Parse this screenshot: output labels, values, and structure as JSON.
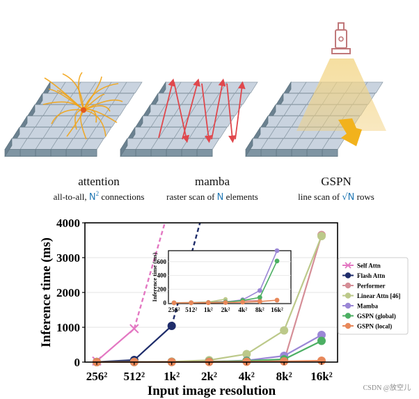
{
  "illustrations": [
    {
      "title": "attention",
      "subtitle_pre": "all-to-all, ",
      "subtitle_var": "N",
      "subtitle_sup": "2",
      "subtitle_post": " connections"
    },
    {
      "title": "mamba",
      "subtitle_pre": "raster scan of ",
      "subtitle_var": "N",
      "subtitle_sup": "",
      "subtitle_post": " elements"
    },
    {
      "title": "GSPN",
      "subtitle_pre": "line scan of ",
      "subtitle_var": "√N",
      "subtitle_sup": "",
      "subtitle_post": " rows"
    }
  ],
  "watermark": "CSDN @放空儿",
  "colors": {
    "self_attn": "#e377c2",
    "flash_attn": "#1f2d6b",
    "performer": "#d58e97",
    "linear_attn": "#bcc98a",
    "mamba": "#9b87d6",
    "gspn_global": "#4caf63",
    "gspn_local": "#e8885a",
    "tile_top": "#c9d3df",
    "tile_side": "#7f95a3",
    "math_blue": "#1f77b4"
  },
  "chart_data": {
    "type": "line",
    "title": "",
    "xlabel": "Input image resolution",
    "ylabel": "Inference time (ms)",
    "categories": [
      "256²",
      "512²",
      "1k²",
      "2k²",
      "4k²",
      "8k²",
      "16k²"
    ],
    "ylim": [
      0,
      4000
    ],
    "yticks": [
      0,
      1000,
      2000,
      3000,
      4000
    ],
    "grid": true,
    "legend_position": "right",
    "series": [
      {
        "name": "Self Attn",
        "key": "self_attn",
        "values": [
          30,
          960,
          null,
          null,
          null,
          null,
          null
        ],
        "extrapolated": true,
        "marker": "x"
      },
      {
        "name": "Flash Attn",
        "key": "flash_attn",
        "values": [
          5,
          60,
          1040,
          null,
          null,
          null,
          null
        ],
        "extrapolated": true,
        "marker": "o"
      },
      {
        "name": "Performer",
        "key": "performer",
        "values": [
          2,
          6,
          12,
          20,
          30,
          35,
          3650
        ],
        "marker": "o"
      },
      {
        "name": "Linear Attn [46]",
        "key": "linear_attn",
        "values": [
          2,
          5,
          12,
          55,
          230,
          910,
          3620
        ],
        "marker": "o"
      },
      {
        "name": "Mamba",
        "key": "mamba",
        "values": [
          1,
          2,
          5,
          14,
          45,
          180,
          780
        ],
        "marker": "o"
      },
      {
        "name": "GSPN (global)",
        "key": "gspn_global",
        "values": [
          1,
          2,
          4,
          12,
          35,
          80,
          610
        ],
        "marker": "o"
      },
      {
        "name": "GSPN (local)",
        "key": "gspn_local",
        "values": [
          1,
          2,
          3,
          5,
          10,
          20,
          40
        ],
        "marker": "o"
      }
    ],
    "inset": {
      "ylabel": "Inference time (ms)",
      "categories": [
        "256²",
        "512²",
        "1k²",
        "2k²",
        "4k²",
        "8k²",
        "16k²"
      ],
      "ylim": [
        0,
        760
      ],
      "yticks": [
        0,
        200,
        400,
        600
      ],
      "series_keys": [
        "mamba",
        "gspn_global",
        "gspn_local"
      ],
      "extra_series": [
        {
          "key": "performer",
          "values": [
            2,
            6,
            12,
            20,
            30,
            35,
            null
          ]
        },
        {
          "key": "linear_attn",
          "values": [
            2,
            5,
            12,
            55,
            null,
            null,
            null
          ]
        }
      ]
    }
  }
}
